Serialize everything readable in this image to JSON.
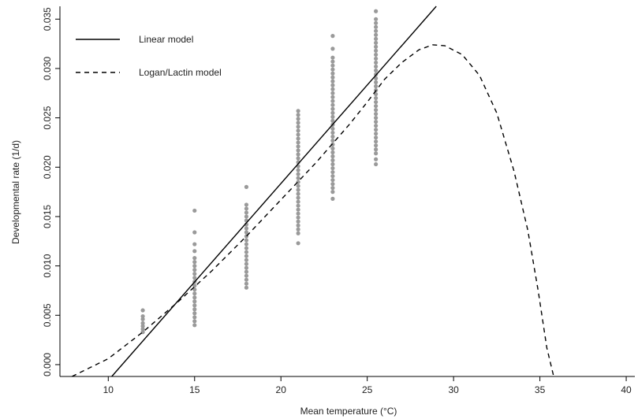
{
  "chart_data": {
    "type": "scatter",
    "xlabel": "Mean temperature (°C)",
    "ylabel": "Developmental rate (1/d)",
    "xlim": [
      7.2,
      40.5
    ],
    "ylim": [
      -0.0012,
      0.0363
    ],
    "xticks": [
      10,
      15,
      20,
      25,
      30,
      35,
      40
    ],
    "yticks": [
      0.0,
      0.005,
      0.01,
      0.015,
      0.02,
      0.025,
      0.03,
      0.035
    ],
    "ytick_labels": [
      "0.000",
      "0.005",
      "0.010",
      "0.015",
      "0.020",
      "0.025",
      "0.030",
      "0.035"
    ],
    "grid": false,
    "legend_position": "top-left",
    "legend": [
      {
        "label": "Linear model",
        "style": "solid"
      },
      {
        "label": "Logan/Lactin model",
        "style": "dashed"
      }
    ],
    "observations": [
      {
        "x": 12,
        "y": [
          0.0033,
          0.0036,
          0.0039,
          0.0042,
          0.0046,
          0.0049,
          0.0055
        ]
      },
      {
        "x": 15,
        "y": [
          0.004,
          0.0044,
          0.0048,
          0.0052,
          0.0056,
          0.006,
          0.0064,
          0.0068,
          0.0072,
          0.0076,
          0.008,
          0.0084,
          0.0088,
          0.0092,
          0.0096,
          0.01,
          0.0104,
          0.0108,
          0.0115,
          0.0122,
          0.0134,
          0.0156
        ]
      },
      {
        "x": 18,
        "y": [
          0.0078,
          0.0082,
          0.0086,
          0.009,
          0.0094,
          0.0098,
          0.0102,
          0.0106,
          0.011,
          0.0114,
          0.0118,
          0.0122,
          0.0126,
          0.013,
          0.0134,
          0.0138,
          0.0142,
          0.0146,
          0.015,
          0.0154,
          0.0158,
          0.0162,
          0.018
        ]
      },
      {
        "x": 21,
        "y": [
          0.0123,
          0.0133,
          0.0137,
          0.0141,
          0.0145,
          0.0149,
          0.0153,
          0.0157,
          0.0161,
          0.0165,
          0.0169,
          0.0173,
          0.0177,
          0.0181,
          0.0185,
          0.0189,
          0.0193,
          0.0197,
          0.0201,
          0.0205,
          0.0209,
          0.0213,
          0.0217,
          0.0221,
          0.0225,
          0.0229,
          0.0233,
          0.0237,
          0.0241,
          0.0245,
          0.0249,
          0.0253,
          0.0257
        ]
      },
      {
        "x": 23,
        "y": [
          0.0168,
          0.0175,
          0.0179,
          0.0183,
          0.0187,
          0.0191,
          0.0195,
          0.0199,
          0.0203,
          0.0207,
          0.0211,
          0.0215,
          0.0219,
          0.0223,
          0.0227,
          0.0231,
          0.0235,
          0.0239,
          0.0243,
          0.0247,
          0.0251,
          0.0255,
          0.0259,
          0.0263,
          0.0267,
          0.0271,
          0.0275,
          0.0279,
          0.0283,
          0.0287,
          0.0291,
          0.0295,
          0.0299,
          0.0303,
          0.0307,
          0.0311,
          0.032,
          0.0333
        ]
      },
      {
        "x": 25.5,
        "y": [
          0.0203,
          0.0208,
          0.0214,
          0.0218,
          0.0222,
          0.0226,
          0.023,
          0.0234,
          0.0238,
          0.0242,
          0.0246,
          0.025,
          0.0254,
          0.0258,
          0.0262,
          0.0266,
          0.027,
          0.0274,
          0.0278,
          0.0282,
          0.0286,
          0.029,
          0.0294,
          0.0298,
          0.0302,
          0.0306,
          0.031,
          0.0314,
          0.0318,
          0.0322,
          0.0326,
          0.033,
          0.0334,
          0.0338,
          0.0342,
          0.0346,
          0.035,
          0.0358
        ]
      }
    ],
    "linear_model": {
      "x": [
        10.2,
        29.0
      ],
      "y": [
        -0.0012,
        0.0363
      ]
    },
    "logan_lactin_model": {
      "x": [
        7.9,
        10,
        12,
        14,
        15,
        16,
        18,
        20,
        22,
        24,
        25,
        26,
        27,
        28,
        28.8,
        29.5,
        30.5,
        31.5,
        32.5,
        33.5,
        34.3,
        34.9,
        35.4,
        35.8
      ],
      "y": [
        -0.0012,
        0.0006,
        0.0033,
        0.0063,
        0.0079,
        0.0095,
        0.013,
        0.0167,
        0.0204,
        0.0244,
        0.0266,
        0.0289,
        0.0306,
        0.0319,
        0.0324,
        0.0323,
        0.0314,
        0.0293,
        0.0255,
        0.0196,
        0.0136,
        0.0075,
        0.0017,
        -0.0012
      ]
    }
  }
}
